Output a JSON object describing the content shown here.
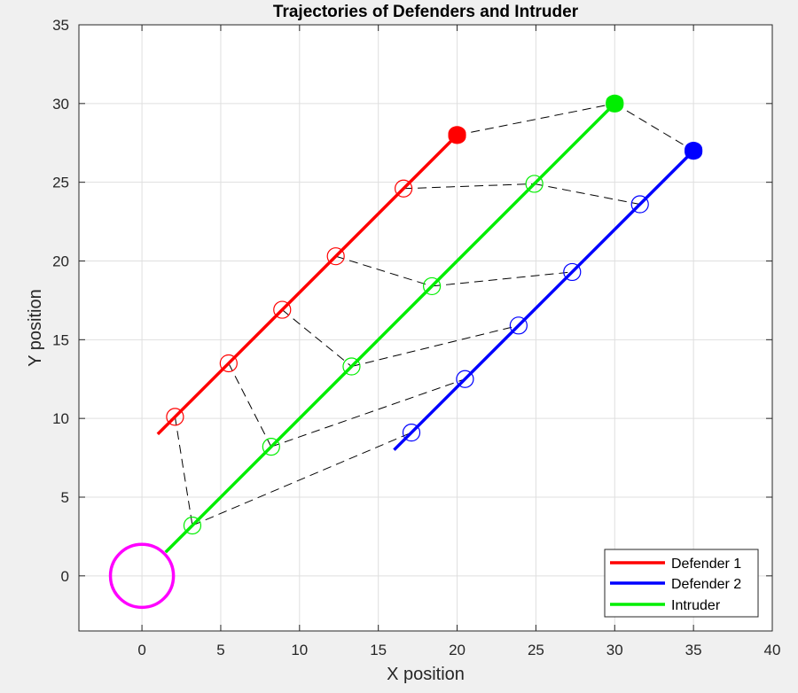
{
  "chart_data": {
    "type": "line",
    "title": "Trajectories of Defenders and Intruder",
    "xlabel": "X position",
    "ylabel": "Y position",
    "xlim": [
      -4,
      40
    ],
    "ylim": [
      -3.5,
      35
    ],
    "xticks": [
      0,
      5,
      10,
      15,
      20,
      25,
      30,
      35,
      40
    ],
    "yticks": [
      0,
      5,
      10,
      15,
      20,
      25,
      30,
      35
    ],
    "grid": true,
    "legend_position": "bottom-right",
    "series": [
      {
        "name": "Defender 1",
        "color": "#ff0000",
        "x": [
          1,
          20
        ],
        "y": [
          9,
          28
        ],
        "markers_x": [
          2.1,
          5.5,
          8.9,
          12.3,
          16.6,
          20
        ],
        "markers_y": [
          10.1,
          13.5,
          16.9,
          20.3,
          24.6,
          28
        ]
      },
      {
        "name": "Defender 2",
        "color": "#0000ff",
        "x": [
          16,
          35
        ],
        "y": [
          8,
          27
        ],
        "markers_x": [
          17.1,
          20.5,
          23.9,
          27.3,
          31.6,
          35
        ],
        "markers_y": [
          9.1,
          12.5,
          15.9,
          19.3,
          23.6,
          27
        ]
      },
      {
        "name": "Intruder",
        "color": "#00ee00",
        "x": [
          1.5,
          30
        ],
        "y": [
          1.5,
          30
        ],
        "markers_x": [
          3.2,
          8.2,
          13.3,
          18.4,
          24.9,
          30
        ],
        "markers_y": [
          3.2,
          8.2,
          13.3,
          18.4,
          24.9,
          30
        ]
      }
    ],
    "target_circle": {
      "center": [
        0,
        0
      ],
      "radius": 2,
      "color": "#ff00ff"
    },
    "connections_color": "#000000"
  }
}
